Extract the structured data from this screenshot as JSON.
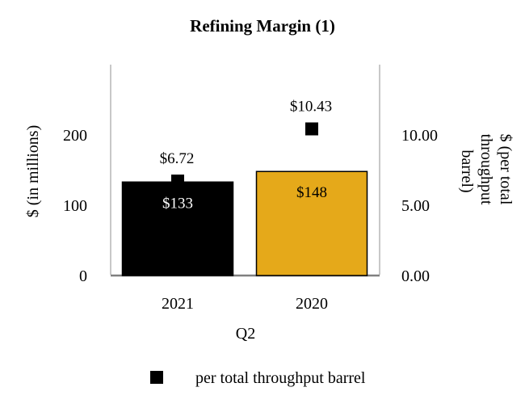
{
  "chart_data": {
    "type": "bar",
    "title": "Refining Margin (1)",
    "xlabel": "Q2",
    "ylabel_left": "$ (in millions)",
    "ylabel_right": "$ (per total throughput barrel)",
    "categories": [
      "2021",
      "2020"
    ],
    "bar_series": {
      "values": [
        133,
        148
      ],
      "labels": [
        "$133",
        "$148"
      ],
      "colors": [
        "#000000",
        "#E5A91A"
      ],
      "label_colors": [
        "#ffffff",
        "#000000"
      ]
    },
    "marker_series": {
      "name": "per total throughput barrel",
      "values": [
        6.72,
        10.43
      ],
      "labels": [
        "$6.72",
        "$10.43"
      ],
      "color": "#000000",
      "axis": "right"
    },
    "left_axis": {
      "ylim": [
        0,
        300
      ],
      "ticks": [
        "0",
        "100",
        "200"
      ],
      "tick_values": [
        0,
        100,
        200
      ]
    },
    "right_axis": {
      "ylim": [
        0,
        15
      ],
      "ticks": [
        "0.00",
        "5.00",
        "10.00"
      ],
      "tick_values": [
        0,
        5,
        10
      ]
    },
    "grid": false,
    "legend_position": "bottom"
  }
}
